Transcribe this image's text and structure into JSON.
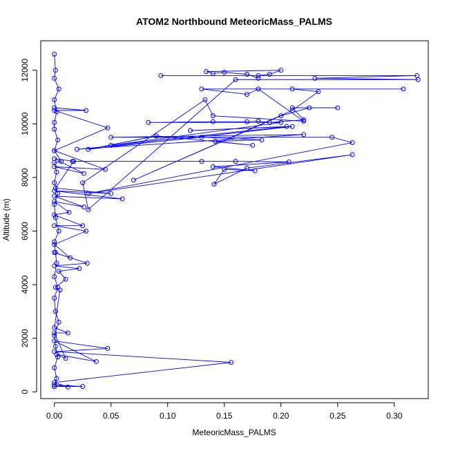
{
  "chart_data": {
    "type": "line",
    "title": "ATOM2 Northbound MeteoricMass_PALMS",
    "xlabel": "MeteoricMass_PALMS",
    "ylabel": "Altitude (m)",
    "xlim": [
      -0.012,
      0.33
    ],
    "ylim": [
      -250,
      13100
    ],
    "xticks": [
      0.0,
      0.05,
      0.1,
      0.15,
      0.2,
      0.25,
      0.3
    ],
    "xtick_labels": [
      "0.00",
      "0.05",
      "0.10",
      "0.15",
      "0.20",
      "0.25",
      "0.30"
    ],
    "yticks": [
      0,
      2000,
      4000,
      6000,
      8000,
      10000,
      12000
    ],
    "ytick_labels": [
      "0",
      "2000",
      "4000",
      "6000",
      "8000",
      "10000",
      "12000"
    ],
    "grid": false,
    "color": "#0000ff",
    "marker": "open-circle",
    "series": [
      {
        "values": [
          [
            0.0,
            200
          ],
          [
            0.002,
            500
          ],
          [
            0.0,
            900
          ],
          [
            0.003,
            1300
          ],
          [
            0.001,
            1700
          ],
          [
            0.0,
            2100
          ],
          [
            0.004,
            2600
          ],
          [
            0.001,
            3000
          ],
          [
            0.0,
            3500
          ],
          [
            0.003,
            3900
          ],
          [
            0.0,
            4300
          ],
          [
            0.002,
            4800
          ],
          [
            0.001,
            5200
          ],
          [
            0.0,
            5600
          ],
          [
            0.004,
            6000
          ],
          [
            0.001,
            6500
          ],
          [
            0.0,
            7000
          ],
          [
            0.003,
            7400
          ],
          [
            0.0,
            7800
          ],
          [
            0.002,
            8200
          ],
          [
            0.0,
            8550
          ],
          [
            0.006,
            8600
          ],
          [
            0.0,
            9000
          ],
          [
            0.003,
            9400
          ],
          [
            0.0,
            9800
          ],
          [
            0.0,
            10050
          ],
          [
            0.002,
            10450
          ],
          [
            0.0,
            10900
          ],
          [
            0.004,
            11300
          ],
          [
            0.0,
            11700
          ],
          [
            0.001,
            12000
          ],
          [
            0.0,
            12600
          ]
        ]
      },
      {
        "values": [
          [
            0.0,
            200
          ],
          [
            0.025,
            200
          ],
          [
            0.0,
            260
          ],
          [
            0.012,
            180
          ],
          [
            0.0,
            350
          ],
          [
            0.156,
            1100
          ],
          [
            0.0,
            1500
          ],
          [
            0.047,
            1620
          ],
          [
            0.0,
            1900
          ],
          [
            0.037,
            1130
          ],
          [
            0.002,
            1400
          ],
          [
            0.01,
            1250
          ],
          [
            0.0,
            2200
          ],
          [
            0.012,
            2200
          ],
          [
            0.0,
            2400
          ],
          [
            0.005,
            3800
          ],
          [
            0.001,
            3900
          ],
          [
            0.01,
            4200
          ],
          [
            0.004,
            4500
          ],
          [
            0.022,
            4600
          ],
          [
            0.0,
            4700
          ],
          [
            0.029,
            4800
          ],
          [
            0.0,
            5200
          ],
          [
            0.014,
            5000
          ],
          [
            0.0,
            5500
          ],
          [
            0.028,
            6000
          ],
          [
            0.0,
            6200
          ],
          [
            0.025,
            6200
          ],
          [
            0.0,
            6600
          ],
          [
            0.013,
            6700
          ],
          [
            0.0,
            7100
          ],
          [
            0.026,
            6900
          ],
          [
            0.0,
            7300
          ],
          [
            0.06,
            7200
          ],
          [
            0.0,
            7500
          ],
          [
            0.05,
            7400
          ],
          [
            0.001,
            7600
          ],
          [
            0.017,
            8600
          ],
          [
            0.0,
            8700
          ],
          [
            0.026,
            8150
          ],
          [
            0.0,
            8400
          ],
          [
            0.045,
            8300
          ],
          [
            0.0,
            9000
          ],
          [
            0.047,
            9850
          ],
          [
            0.0,
            10500
          ],
          [
            0.028,
            10500
          ],
          [
            0.0,
            10600
          ]
        ]
      },
      {
        "values": [
          [
            0.016,
            8600
          ],
          [
            0.13,
            8600
          ],
          [
            0.16,
            8600
          ],
          [
            0.207,
            8580
          ],
          [
            0.14,
            8400
          ],
          [
            0.177,
            8250
          ],
          [
            0.15,
            8300
          ],
          [
            0.141,
            7750
          ],
          [
            0.17,
            8350
          ],
          [
            0.263,
            8850
          ],
          [
            0.03,
            7400
          ],
          [
            0.263,
            9300
          ],
          [
            0.245,
            9500
          ],
          [
            0.05,
            9500
          ],
          [
            0.22,
            9600
          ],
          [
            0.02,
            9050
          ],
          [
            0.13,
            9500
          ],
          [
            0.183,
            9400
          ],
          [
            0.142,
            9350
          ],
          [
            0.175,
            9200
          ],
          [
            0.09,
            9550
          ],
          [
            0.03,
            9050
          ],
          [
            0.21,
            9900
          ],
          [
            0.12,
            9750
          ],
          [
            0.205,
            9900
          ],
          [
            0.05,
            9200
          ],
          [
            0.2,
            10050
          ],
          [
            0.083,
            10050
          ],
          [
            0.14,
            10080
          ],
          [
            0.17,
            10080
          ],
          [
            0.18,
            10100
          ],
          [
            0.19,
            10050
          ],
          [
            0.22,
            10150
          ],
          [
            0.21,
            10600
          ],
          [
            0.25,
            10600
          ],
          [
            0.225,
            10600
          ],
          [
            0.2,
            10300
          ],
          [
            0.07,
            7900
          ],
          [
            0.21,
            10500
          ],
          [
            0.233,
            11200
          ],
          [
            0.21,
            11300
          ],
          [
            0.308,
            11300
          ],
          [
            0.13,
            11300
          ],
          [
            0.17,
            11100
          ],
          [
            0.18,
            11300
          ],
          [
            0.22,
            10100
          ],
          [
            0.14,
            10300
          ],
          [
            0.133,
            10900
          ],
          [
            0.025,
            7800
          ],
          [
            0.03,
            6800
          ],
          [
            0.16,
            11650
          ],
          [
            0.321,
            11650
          ],
          [
            0.23,
            11700
          ],
          [
            0.32,
            11800
          ],
          [
            0.094,
            11800
          ],
          [
            0.18,
            11800
          ],
          [
            0.19,
            11850
          ],
          [
            0.2,
            12000
          ],
          [
            0.134,
            11950
          ],
          [
            0.14,
            11880
          ],
          [
            0.15,
            11920
          ],
          [
            0.17,
            11850
          ],
          [
            0.18,
            11700
          ]
        ]
      }
    ]
  }
}
